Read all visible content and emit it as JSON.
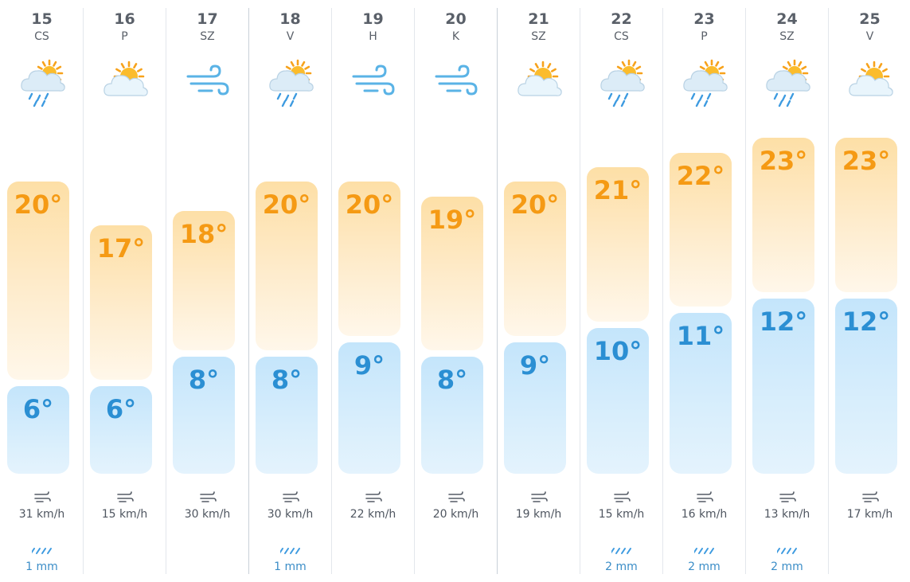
{
  "forecast": {
    "days": [
      {
        "date": "15",
        "dow": "CS",
        "icon": "sun-cloud-rain-icon",
        "max": "20°",
        "min": "6°",
        "wind": "31 km/h",
        "precip": "1 mm"
      },
      {
        "date": "16",
        "dow": "P",
        "icon": "sun-cloud-icon",
        "max": "17°",
        "min": "6°",
        "wind": "15 km/h",
        "precip": ""
      },
      {
        "date": "17",
        "dow": "SZ",
        "icon": "wind-icon",
        "max": "18°",
        "min": "8°",
        "wind": "30 km/h",
        "precip": ""
      },
      {
        "date": "18",
        "dow": "V",
        "icon": "sun-cloud-rain-icon",
        "max": "20°",
        "min": "8°",
        "wind": "30 km/h",
        "precip": "1 mm"
      },
      {
        "date": "19",
        "dow": "H",
        "icon": "wind-icon",
        "max": "20°",
        "min": "9°",
        "wind": "22 km/h",
        "precip": ""
      },
      {
        "date": "20",
        "dow": "K",
        "icon": "wind-icon",
        "max": "19°",
        "min": "8°",
        "wind": "20 km/h",
        "precip": ""
      },
      {
        "date": "21",
        "dow": "SZ",
        "icon": "sun-cloud-icon",
        "max": "20°",
        "min": "9°",
        "wind": "19 km/h",
        "precip": ""
      },
      {
        "date": "22",
        "dow": "CS",
        "icon": "sun-cloud-rain-icon",
        "max": "21°",
        "min": "10°",
        "wind": "15 km/h",
        "precip": "2 mm"
      },
      {
        "date": "23",
        "dow": "P",
        "icon": "sun-cloud-rain-icon",
        "max": "22°",
        "min": "11°",
        "wind": "16 km/h",
        "precip": "2 mm"
      },
      {
        "date": "24",
        "dow": "SZ",
        "icon": "sun-cloud-rain-icon",
        "max": "23°",
        "min": "12°",
        "wind": "13 km/h",
        "precip": "2 mm"
      },
      {
        "date": "25",
        "dow": "V",
        "icon": "sun-cloud-icon",
        "max": "23°",
        "min": "12°",
        "wind": "17 km/h",
        "precip": ""
      }
    ],
    "colors": {
      "max_text": "#f59a14",
      "min_text": "#2b8fd3",
      "max_bar": "#fddfa6",
      "min_bar": "#c4e5fb",
      "precip_text": "#3b8dc7"
    }
  }
}
